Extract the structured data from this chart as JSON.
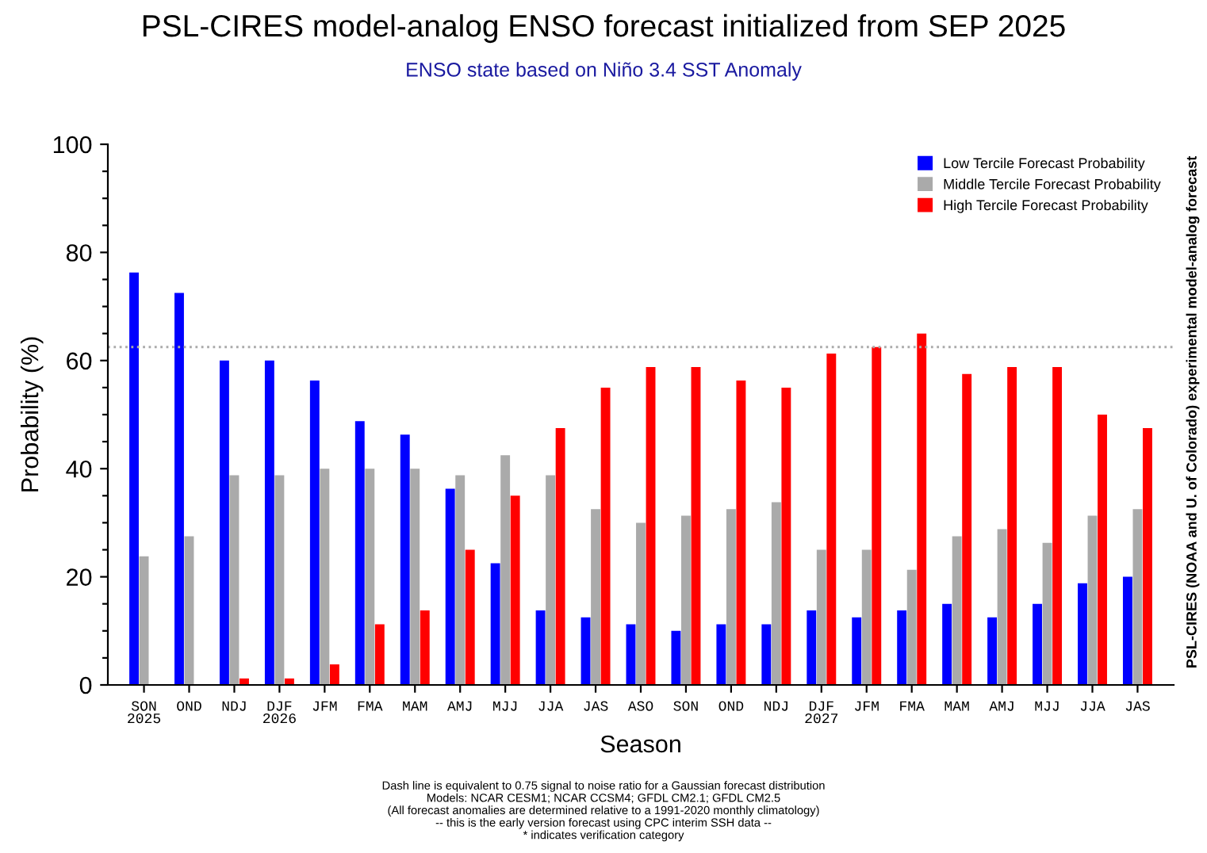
{
  "chart_data": {
    "type": "bar",
    "title": "PSL-CIRES model-analog ENSO forecast initialized from SEP 2025",
    "subtitle": "ENSO state based on Niño 3.4 SST Anomaly",
    "xlabel": "Season",
    "ylabel": "Probability (%)",
    "categories": [
      "SON\n2025",
      "OND",
      "NDJ",
      "DJF\n2026",
      "JFM",
      "FMA",
      "MAM",
      "AMJ",
      "MJJ",
      "JJA",
      "JAS",
      "ASO",
      "SON",
      "OND",
      "NDJ",
      "DJF\n2027",
      "JFM",
      "FMA",
      "MAM",
      "AMJ",
      "MJJ",
      "JJA",
      "JAS"
    ],
    "series": [
      {
        "name": "Low Tercile Forecast Probability",
        "color": "#0000ff",
        "values": [
          76.3,
          72.5,
          60,
          60,
          56.3,
          48.8,
          46.3,
          36.3,
          22.5,
          13.8,
          12.5,
          11.2,
          10,
          11.2,
          11.2,
          13.8,
          12.5,
          13.8,
          15,
          12.5,
          15,
          18.8,
          20
        ]
      },
      {
        "name": "Middle Tercile Forecast Probability",
        "color": "#aaaaaa",
        "values": [
          23.8,
          27.5,
          38.8,
          38.8,
          40,
          40,
          40,
          38.8,
          42.5,
          38.8,
          32.5,
          30,
          31.3,
          32.5,
          33.8,
          25,
          25,
          21.3,
          27.5,
          28.8,
          26.3,
          31.3,
          32.5
        ]
      },
      {
        "name": "High Tercile Forecast Probability",
        "color": "#ff0000",
        "values": [
          0,
          0,
          1.2,
          1.2,
          3.8,
          11.2,
          13.8,
          25,
          35,
          47.5,
          55,
          58.8,
          58.8,
          56.3,
          55,
          61.3,
          62.5,
          65,
          57.5,
          58.8,
          58.8,
          50,
          47.5
        ]
      }
    ],
    "ylim": [
      0,
      100
    ],
    "yticks": [
      0,
      {
        "value": 5,
        "label": null
      },
      {
        "value": 10,
        "label": null
      },
      {
        "value": 15,
        "label": null
      },
      20,
      {
        "value": 25,
        "label": null
      },
      {
        "value": 30,
        "label": null
      },
      {
        "value": 35,
        "label": null
      },
      40,
      {
        "value": 45,
        "label": null
      },
      {
        "value": 50,
        "label": null
      },
      {
        "value": 55,
        "label": null
      },
      60,
      {
        "value": 65,
        "label": null
      },
      {
        "value": 70,
        "label": null
      },
      {
        "value": 75,
        "label": null
      },
      80,
      {
        "value": 85,
        "label": null
      },
      {
        "value": 90,
        "label": null
      },
      {
        "value": 95,
        "label": null
      },
      100
    ],
    "ref_lines": [
      {
        "axis": "y",
        "value": 62.5,
        "label": null,
        "color": "#aaaaaa",
        "line_style": "dotted"
      }
    ],
    "legend": "top right",
    "annotations": [
      "PSL-CIRES (NOAA and U. of Colorado) experimental model-analog forecast",
      "Dash line is equivalent to 0.75 signal to noise ratio for a Gaussian forecast distribution",
      "Models: NCAR CESM1; NCAR CCSM4; GFDL CM2.1; GFDL CM2.5",
      "(All forecast anomalies are determined relative to a 1991-2020 monthly climatology)",
      "-- this is the early version forecast using CPC interim SSH data --",
      "* indicates verification category"
    ]
  }
}
